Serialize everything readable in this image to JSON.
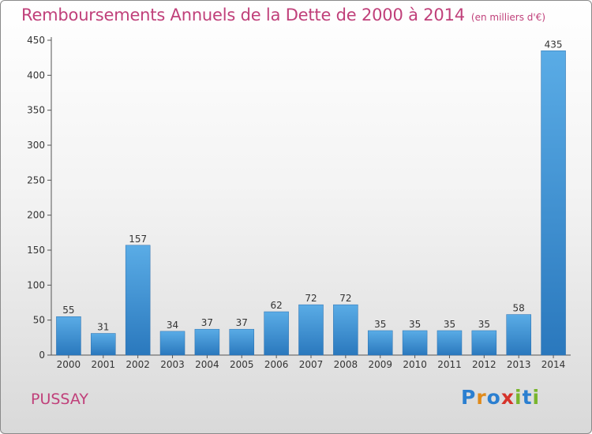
{
  "chart_data": {
    "type": "bar",
    "title": "Remboursements Annuels de la Dette de 2000 à 2014",
    "unit": "(en milliers d'€)",
    "categories": [
      "2000",
      "2001",
      "2002",
      "2003",
      "2004",
      "2005",
      "2006",
      "2007",
      "2008",
      "2009",
      "2010",
      "2011",
      "2012",
      "2013",
      "2014"
    ],
    "values": [
      55,
      31,
      157,
      34,
      37,
      37,
      62,
      72,
      72,
      35,
      35,
      35,
      35,
      58,
      435
    ],
    "ylim": [
      0,
      450
    ],
    "yticks": [
      0,
      50,
      100,
      150,
      200,
      250,
      300,
      350,
      400,
      450
    ],
    "xlabel": "",
    "ylabel": "",
    "grid": false,
    "bar_color": "#3a90d6"
  },
  "commune": "PUSSAY",
  "logo": {
    "letters": [
      "P",
      "r",
      "o",
      "x",
      "i",
      "t",
      "i"
    ],
    "colors": [
      "#2b7fd0",
      "#e08a1a",
      "#2b7fd0",
      "#d6332a",
      "#79b52d",
      "#2b7fd0",
      "#79b52d"
    ]
  }
}
